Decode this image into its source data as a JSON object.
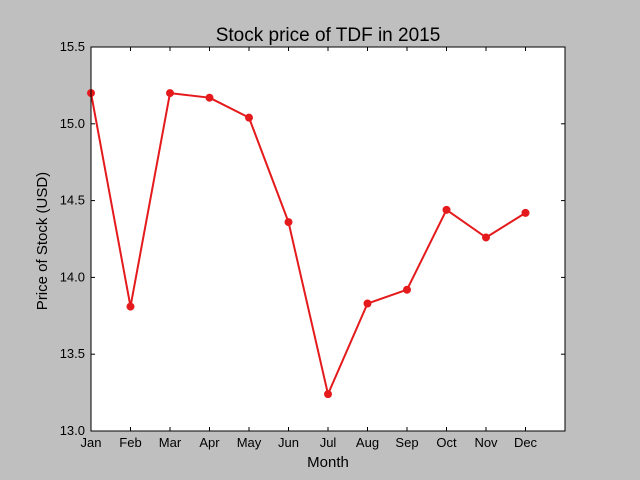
{
  "chart_data": {
    "type": "line",
    "title": "Stock price of TDF in 2015",
    "xlabel": "Month",
    "ylabel": "Price of Stock (USD)",
    "categories": [
      "Jan",
      "Feb",
      "Mar",
      "Apr",
      "May",
      "Jun",
      "Jul",
      "Aug",
      "Sep",
      "Oct",
      "Nov",
      "Dec"
    ],
    "series": [
      {
        "values": [
          15.2,
          13.81,
          15.2,
          15.17,
          15.04,
          14.36,
          13.24,
          13.83,
          13.92,
          14.44,
          14.26,
          14.42
        ],
        "color": "#e41a1c",
        "marker": "circle"
      }
    ],
    "ylim": [
      13.0,
      15.5
    ],
    "yticks": [
      "13.0",
      "13.5",
      "14.0",
      "14.5",
      "15.0",
      "15.5"
    ],
    "xlim": [
      0,
      12
    ],
    "grid": false,
    "legend": "none"
  }
}
